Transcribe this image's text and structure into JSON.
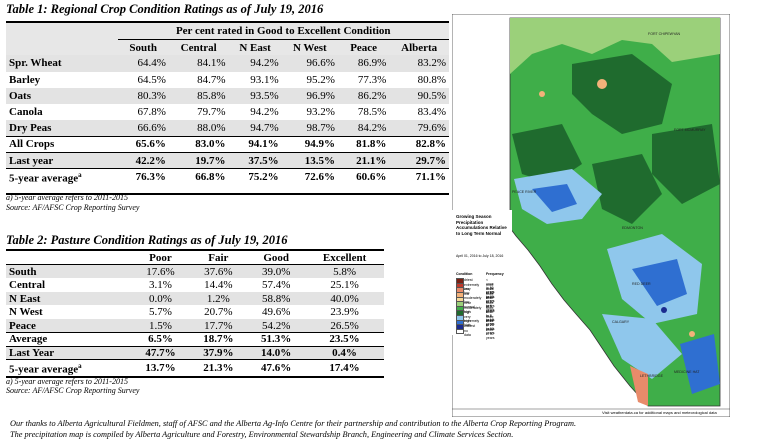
{
  "table1": {
    "title": "Table 1: Regional Crop Condition Ratings as of July 19, 2016",
    "header_span": "Per cent rated in Good to Excellent Condition",
    "columns": [
      "South",
      "Central",
      "N East",
      "N West",
      "Peace",
      "Alberta"
    ],
    "rows": [
      {
        "label": "Spr. Wheat",
        "values": [
          "64.4%",
          "84.1%",
          "94.2%",
          "96.6%",
          "86.9%",
          "83.2%"
        ]
      },
      {
        "label": "Barley",
        "values": [
          "64.5%",
          "84.7%",
          "93.1%",
          "95.2%",
          "77.3%",
          "80.8%"
        ]
      },
      {
        "label": "Oats",
        "values": [
          "80.3%",
          "85.8%",
          "93.5%",
          "96.9%",
          "86.2%",
          "90.5%"
        ]
      },
      {
        "label": "Canola",
        "values": [
          "67.8%",
          "79.7%",
          "94.2%",
          "93.2%",
          "78.5%",
          "83.4%"
        ]
      },
      {
        "label": "Dry Peas",
        "values": [
          "66.6%",
          "88.0%",
          "94.7%",
          "98.7%",
          "84.2%",
          "79.6%"
        ]
      },
      {
        "label": "All Crops",
        "values": [
          "65.6%",
          "83.0%",
          "94.1%",
          "94.9%",
          "81.8%",
          "82.8%"
        ]
      },
      {
        "label": "Last year",
        "values": [
          "42.2%",
          "19.7%",
          "37.5%",
          "13.5%",
          "21.1%",
          "29.7%"
        ]
      },
      {
        "label": "5-year average",
        "sup": "a",
        "values": [
          "76.3%",
          "66.8%",
          "75.2%",
          "72.6%",
          "60.6%",
          "71.1%"
        ]
      }
    ],
    "footnote1": "a) 5-year average refers to 2011-2015",
    "footnote2": "Source: AF/AFSC Crop Reporting Survey"
  },
  "table2": {
    "title": "Table 2: Pasture Condition Ratings as of July 19, 2016",
    "columns": [
      "Poor",
      "Fair",
      "Good",
      "Excellent"
    ],
    "rows": [
      {
        "label": "South",
        "values": [
          "17.6%",
          "37.6%",
          "39.0%",
          "5.8%"
        ]
      },
      {
        "label": "Central",
        "values": [
          "3.1%",
          "14.4%",
          "57.4%",
          "25.1%"
        ]
      },
      {
        "label": "N East",
        "values": [
          "0.0%",
          "1.2%",
          "58.8%",
          "40.0%"
        ]
      },
      {
        "label": "N West",
        "values": [
          "5.7%",
          "20.7%",
          "49.6%",
          "23.9%"
        ]
      },
      {
        "label": "Peace",
        "values": [
          "1.5%",
          "17.7%",
          "54.2%",
          "26.5%"
        ]
      },
      {
        "label": "Average",
        "values": [
          "6.5%",
          "18.7%",
          "51.3%",
          "23.5%"
        ]
      },
      {
        "label": "Last Year",
        "values": [
          "47.7%",
          "37.9%",
          "14.0%",
          "0.4%"
        ]
      },
      {
        "label": "5-year average",
        "sup": "a",
        "values": [
          "13.7%",
          "21.3%",
          "47.6%",
          "17.4%"
        ]
      }
    ],
    "footnote1": "a) 5-year average refers to 2011-2015",
    "footnote2": "Source: AF/AFSC Crop Reporting Survey"
  },
  "thanks": {
    "line1": "Our thanks to Alberta Agricultural Fieldmen, staff of AFSC and the Alberta Ag-Info Centre for their partnership and contribution to the Alberta Crop Reporting Program.",
    "line2": "The precipitation map is compiled by Alberta Agriculture and Forestry, Environmental Stewardship Branch, Engineering and Climate Services Section."
  },
  "map": {
    "legend_title": "Growing Season Precipitation Accumulations Relative to Long Term Normal",
    "dates": "April 01, 2016 to July 18, 2016",
    "condition_header": "Condition",
    "frequency_header": "Frequency",
    "legend": [
      {
        "condition": "driest",
        "frequency": "< once in 50 years",
        "color": "#7a1f12"
      },
      {
        "condition": "extremely low",
        "frequency": "once in 25 to 50 years",
        "color": "#c0392b"
      },
      {
        "condition": "very low",
        "frequency": "once in 12 to 25 years",
        "color": "#e88b6a"
      },
      {
        "condition": "low",
        "frequency": "once in 6 to 12 years",
        "color": "#f3b27a"
      },
      {
        "condition": "moderately low",
        "frequency": "once in 3 to 6 years",
        "color": "#f6d99a"
      },
      {
        "condition": "near normal",
        "frequency": "once in 3 years",
        "color": "#9bd07a"
      },
      {
        "condition": "moderately high",
        "frequency": "once in 3 to 6 years",
        "color": "#3fae49"
      },
      {
        "condition": "high",
        "frequency": "once in 6 to 12 years",
        "color": "#1f6b2e"
      },
      {
        "condition": "very high",
        "frequency": "once in 12 to 25 years",
        "color": "#8fc7ec"
      },
      {
        "condition": "extremely high",
        "frequency": "once in 25 to 50 years",
        "color": "#2f6fd1"
      },
      {
        "condition": "wettest",
        "frequency": "> once in 50 years",
        "color": "#1b2b8f"
      },
      {
        "condition": "no data",
        "frequency": "",
        "color": "#ffffff"
      }
    ],
    "footer": "Visit weatherdata.ca for additional maps and meteorological data",
    "place_labels": [
      "FORT CHIPEWYAN",
      "FORT MCMURRAY",
      "PEACE RIVER",
      "EDMONTON",
      "RED DEER",
      "CALGARY",
      "LETHBRIDGE",
      "MEDICINE HAT"
    ]
  }
}
